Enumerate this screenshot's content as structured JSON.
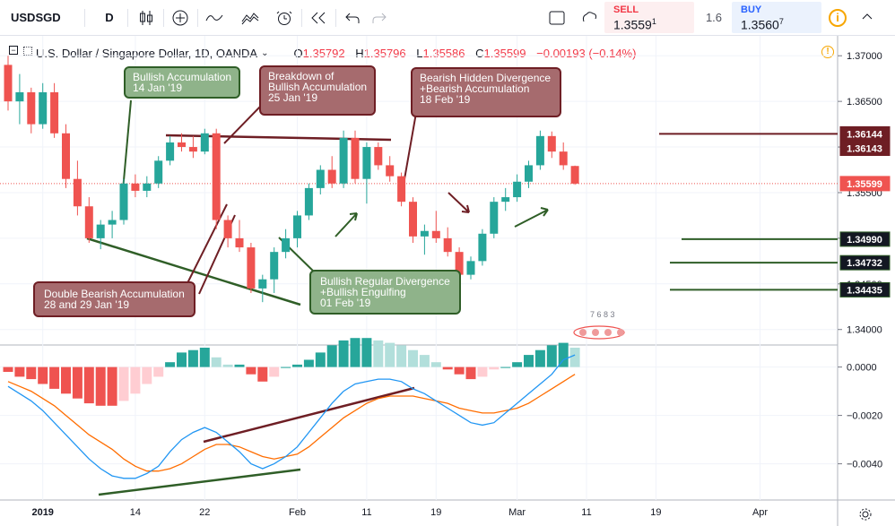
{
  "toolbar": {
    "symbol": "USDSGD",
    "interval": "D",
    "icons": [
      "candles-icon",
      "add-icon",
      "indicators-icon",
      "compare-icon",
      "alert-icon",
      "replay-icon",
      "undo-icon",
      "redo-icon",
      "fullscreen-icon",
      "snapshot-icon"
    ]
  },
  "trade": {
    "sell_label": "SELL",
    "sell_price": "1.3559",
    "sell_sup": "1",
    "spread": "1.6",
    "buy_label": "BUY",
    "buy_price": "1.3560",
    "buy_sup": "7",
    "info": "i"
  },
  "legend": {
    "title": "U.S. Dollar / Singapore Dollar, 1D, OANDA",
    "o_label": "O",
    "o": "1.35792",
    "h_label": "H",
    "h": "1.35796",
    "l_label": "L",
    "l": "1.35586",
    "c_label": "C",
    "c": "1.35599",
    "change": "−0.00193 (−0.14%)"
  },
  "colors": {
    "up": "#26a69a",
    "down": "#ef5350",
    "hist_up_strong": "#26a69a",
    "hist_up_weak": "#b2dfdb",
    "hist_down_strong": "#ef5350",
    "hist_down_weak": "#ffcdd2",
    "macd": "#2196f3",
    "signal": "#ff6d00",
    "level_red": "#6e1e24",
    "level_green": "#2f5e27"
  },
  "chart_data": [
    {
      "type": "candlestick",
      "title": "U.S. Dollar / Singapore Dollar, 1D, OANDA",
      "ylim": [
        1.3385,
        1.3712
      ],
      "y_ticks": [
        "1.37000",
        "1.36500",
        "1.36000",
        "1.35500",
        "1.35000",
        "1.34500",
        "1.34000"
      ],
      "x_ticks": [
        "2019",
        "14",
        "22",
        "Feb",
        "11",
        "19",
        "Mar",
        "11",
        "19",
        "Apr"
      ],
      "x_tick_candle_index": [
        3,
        11,
        17,
        25,
        31,
        37,
        44,
        50,
        56,
        65
      ],
      "candles": [
        [
          1.369,
          1.37,
          1.364,
          1.365
        ],
        [
          1.365,
          1.368,
          1.3625,
          1.366
        ],
        [
          1.366,
          1.3665,
          1.3615,
          1.3625
        ],
        [
          1.3625,
          1.367,
          1.362,
          1.366
        ],
        [
          1.366,
          1.367,
          1.361,
          1.3615
        ],
        [
          1.3615,
          1.3625,
          1.3555,
          1.3565
        ],
        [
          1.3565,
          1.3585,
          1.3525,
          1.3535
        ],
        [
          1.3535,
          1.3545,
          1.3495,
          1.35
        ],
        [
          1.35,
          1.352,
          1.3488,
          1.3515
        ],
        [
          1.3515,
          1.353,
          1.35,
          1.352
        ],
        [
          1.352,
          1.3565,
          1.3515,
          1.356
        ],
        [
          1.356,
          1.357,
          1.3545,
          1.3552
        ],
        [
          1.3552,
          1.3568,
          1.3545,
          1.356
        ],
        [
          1.356,
          1.359,
          1.3555,
          1.3585
        ],
        [
          1.3585,
          1.3612,
          1.358,
          1.3605
        ],
        [
          1.3605,
          1.3615,
          1.3595,
          1.36
        ],
        [
          1.36,
          1.3612,
          1.3588,
          1.3595
        ],
        [
          1.3595,
          1.362,
          1.3592,
          1.3615
        ],
        [
          1.3615,
          1.362,
          1.351,
          1.352
        ],
        [
          1.352,
          1.3525,
          1.349,
          1.35
        ],
        [
          1.35,
          1.352,
          1.3485,
          1.349
        ],
        [
          1.349,
          1.3495,
          1.344,
          1.3445
        ],
        [
          1.3445,
          1.346,
          1.343,
          1.3455
        ],
        [
          1.3455,
          1.349,
          1.344,
          1.3485
        ],
        [
          1.3485,
          1.351,
          1.3478,
          1.35
        ],
        [
          1.35,
          1.353,
          1.349,
          1.3525
        ],
        [
          1.3525,
          1.356,
          1.352,
          1.3555
        ],
        [
          1.3555,
          1.358,
          1.3548,
          1.3575
        ],
        [
          1.3575,
          1.359,
          1.3555,
          1.356
        ],
        [
          1.356,
          1.3618,
          1.3555,
          1.361
        ],
        [
          1.361,
          1.3618,
          1.356,
          1.3565
        ],
        [
          1.3565,
          1.3605,
          1.3538,
          1.36
        ],
        [
          1.36,
          1.3605,
          1.3575,
          1.358
        ],
        [
          1.358,
          1.359,
          1.3562,
          1.3568
        ],
        [
          1.3568,
          1.3572,
          1.3535,
          1.354
        ],
        [
          1.354,
          1.3545,
          1.3495,
          1.3502
        ],
        [
          1.3502,
          1.3515,
          1.3482,
          1.3508
        ],
        [
          1.3508,
          1.353,
          1.3495,
          1.35
        ],
        [
          1.35,
          1.3512,
          1.348,
          1.3485
        ],
        [
          1.3485,
          1.349,
          1.3458,
          1.346
        ],
        [
          1.346,
          1.348,
          1.3455,
          1.3475
        ],
        [
          1.3475,
          1.351,
          1.347,
          1.3505
        ],
        [
          1.3505,
          1.3545,
          1.35,
          1.354
        ],
        [
          1.354,
          1.3555,
          1.353,
          1.3545
        ],
        [
          1.3545,
          1.357,
          1.354,
          1.3562
        ],
        [
          1.3562,
          1.3585,
          1.3555,
          1.358
        ],
        [
          1.358,
          1.3618,
          1.3575,
          1.3612
        ],
        [
          1.3612,
          1.3617,
          1.3588,
          1.3595
        ],
        [
          1.3595,
          1.3605,
          1.3575,
          1.358
        ],
        [
          1.35792,
          1.35796,
          1.35586,
          1.35599
        ]
      ],
      "annotations": [
        {
          "text": "Bullish Accumulation\n14 Jan '19",
          "style": "green"
        },
        {
          "text": "Breakdown of\nBullish Accumulation\n25 Jan '19",
          "style": "red"
        },
        {
          "text": "Bearish Hidden Divergence\n+Bearish Accumulation\n18 Feb '19",
          "style": "red"
        },
        {
          "text": "Double Bearish Accumulation\n28 and 29 Jan '19",
          "style": "red"
        },
        {
          "text": "Bullish Regular Divergence\n+Bullish Engulfing\n01 Feb '19",
          "style": "green"
        }
      ],
      "price_levels": [
        {
          "label": "1.36144",
          "value": 1.36144,
          "color": "red"
        },
        {
          "label": "1.36143",
          "value": 1.36143,
          "color": "red"
        },
        {
          "label": "1.35599",
          "value": 1.35599,
          "color": "current"
        },
        {
          "label": "1.34990",
          "value": 1.3499,
          "color": "green"
        },
        {
          "label": "1.34732",
          "value": 1.34732,
          "color": "green"
        },
        {
          "label": "1.34435",
          "value": 1.34435,
          "color": "green"
        }
      ],
      "watermark": "7 6 8 3"
    },
    {
      "type": "histogram+line",
      "ylim": [
        -0.0052,
        0.0008
      ],
      "y_ticks": [
        "0.0000",
        "−0.0020",
        "−0.0040"
      ],
      "histogram": [
        -0.0002,
        -0.0004,
        -0.0005,
        -0.0007,
        -0.0009,
        -0.0011,
        -0.0013,
        -0.0015,
        -0.0016,
        -0.0016,
        -0.0014,
        -0.0011,
        -0.0007,
        -0.0004,
        0.0002,
        0.0006,
        0.0007,
        0.0008,
        0.0004,
        0.0001,
        0.0001,
        -0.0003,
        -0.0006,
        -0.0004,
        0.0,
        0.0001,
        0.0003,
        0.0006,
        0.0009,
        0.0011,
        0.0012,
        0.0012,
        0.0011,
        0.001,
        0.0009,
        0.0007,
        0.0005,
        0.0002,
        -0.0001,
        -0.0003,
        -0.0005,
        -0.0004,
        -0.0001,
        0.0,
        0.0002,
        0.0005,
        0.0007,
        0.0009,
        0.001,
        0.0008
      ],
      "macd": [
        -0.0008,
        -0.0011,
        -0.0014,
        -0.0018,
        -0.0023,
        -0.0028,
        -0.0033,
        -0.0038,
        -0.0042,
        -0.0045,
        -0.0046,
        -0.0046,
        -0.0044,
        -0.0041,
        -0.0035,
        -0.003,
        -0.0027,
        -0.0025,
        -0.0027,
        -0.0031,
        -0.0035,
        -0.004,
        -0.0042,
        -0.004,
        -0.0037,
        -0.0033,
        -0.0027,
        -0.0021,
        -0.0015,
        -0.001,
        -0.0007,
        -0.0006,
        -0.0005,
        -0.0005,
        -0.0006,
        -0.0009,
        -0.0011,
        -0.0014,
        -0.0017,
        -0.002,
        -0.0023,
        -0.0024,
        -0.0023,
        -0.0019,
        -0.0015,
        -0.0011,
        -0.0007,
        -0.0003,
        0.0003,
        0.0005
      ],
      "signal": [
        -0.0006,
        -0.0008,
        -0.001,
        -0.0013,
        -0.0016,
        -0.002,
        -0.0024,
        -0.0028,
        -0.0031,
        -0.0034,
        -0.0038,
        -0.0041,
        -0.0043,
        -0.0043,
        -0.0042,
        -0.004,
        -0.0037,
        -0.0034,
        -0.0032,
        -0.0032,
        -0.0033,
        -0.0035,
        -0.0037,
        -0.0038,
        -0.0037,
        -0.0036,
        -0.0033,
        -0.0029,
        -0.0025,
        -0.0021,
        -0.0018,
        -0.0015,
        -0.0013,
        -0.0012,
        -0.0012,
        -0.0012,
        -0.0013,
        -0.0014,
        -0.0015,
        -0.0017,
        -0.0018,
        -0.0019,
        -0.0019,
        -0.0018,
        -0.0017,
        -0.0015,
        -0.0012,
        -0.0009,
        -0.0006,
        -0.0003
      ]
    }
  ]
}
